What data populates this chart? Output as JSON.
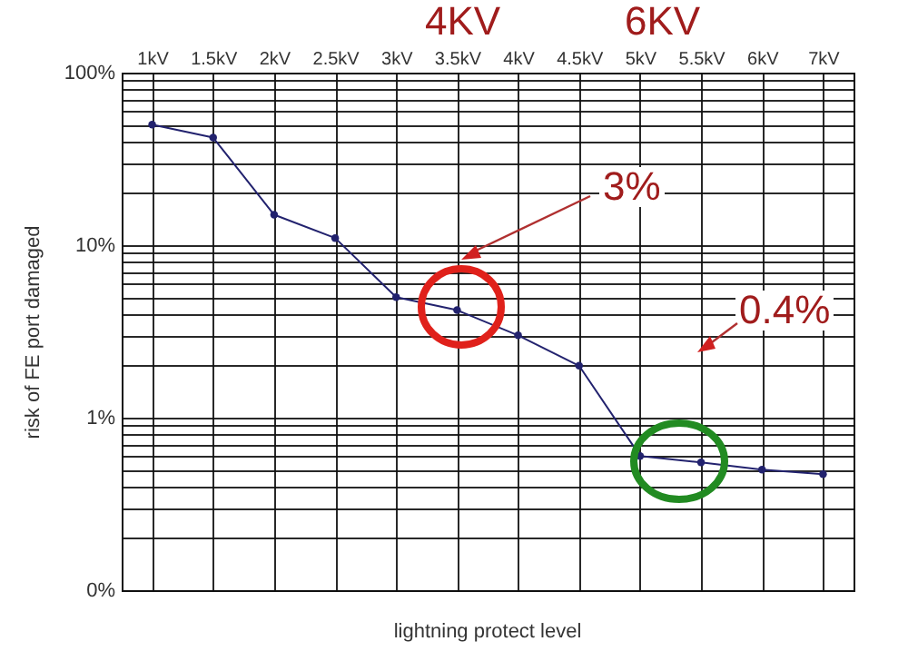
{
  "chart_data": {
    "type": "line",
    "xlabel": "lightning protect level",
    "ylabel": "risk of FE port damaged",
    "categories": [
      "1kV",
      "1.5kV",
      "2kV",
      "2.5kV",
      "3kV",
      "3.5kV",
      "4kV",
      "4.5kV",
      "5kV",
      "5.5kV",
      "6kV",
      "7kV"
    ],
    "series": [
      {
        "color": "#22226e",
        "values": [
          50,
          42,
          15,
          11,
          5,
          4.2,
          3,
          2,
          0.6,
          0.55,
          0.5,
          0.47
        ]
      }
    ],
    "log": "y",
    "ylim": [
      0.1,
      100
    ],
    "yticks": [
      {
        "value": 0.1,
        "label": "0%"
      },
      {
        "value": 0.2,
        "label": null
      },
      {
        "value": 0.3,
        "label": null
      },
      {
        "value": 0.4,
        "label": null
      },
      {
        "value": 0.5,
        "label": null
      },
      {
        "value": 0.6,
        "label": null
      },
      {
        "value": 0.7,
        "label": null
      },
      {
        "value": 0.8,
        "label": null
      },
      {
        "value": 0.9,
        "label": null
      },
      {
        "value": 1,
        "label": "1%"
      },
      {
        "value": 2,
        "label": null
      },
      {
        "value": 3,
        "label": null
      },
      {
        "value": 4,
        "label": null
      },
      {
        "value": 5,
        "label": null
      },
      {
        "value": 6,
        "label": null
      },
      {
        "value": 7,
        "label": null
      },
      {
        "value": 8,
        "label": null
      },
      {
        "value": 9,
        "label": null
      },
      {
        "value": 10,
        "label": "10%"
      },
      {
        "value": 20,
        "label": null
      },
      {
        "value": 30,
        "label": null
      },
      {
        "value": 40,
        "label": null
      },
      {
        "value": 50,
        "label": null
      },
      {
        "value": 60,
        "label": null
      },
      {
        "value": 70,
        "label": null
      },
      {
        "value": 80,
        "label": null
      },
      {
        "value": 90,
        "label": null
      },
      {
        "value": 100,
        "label": "100%"
      }
    ],
    "grid": true,
    "marker": "circle",
    "line_style": "solid",
    "annotations": [
      "4KV",
      "6KV",
      "3%",
      "0.4%"
    ]
  }
}
